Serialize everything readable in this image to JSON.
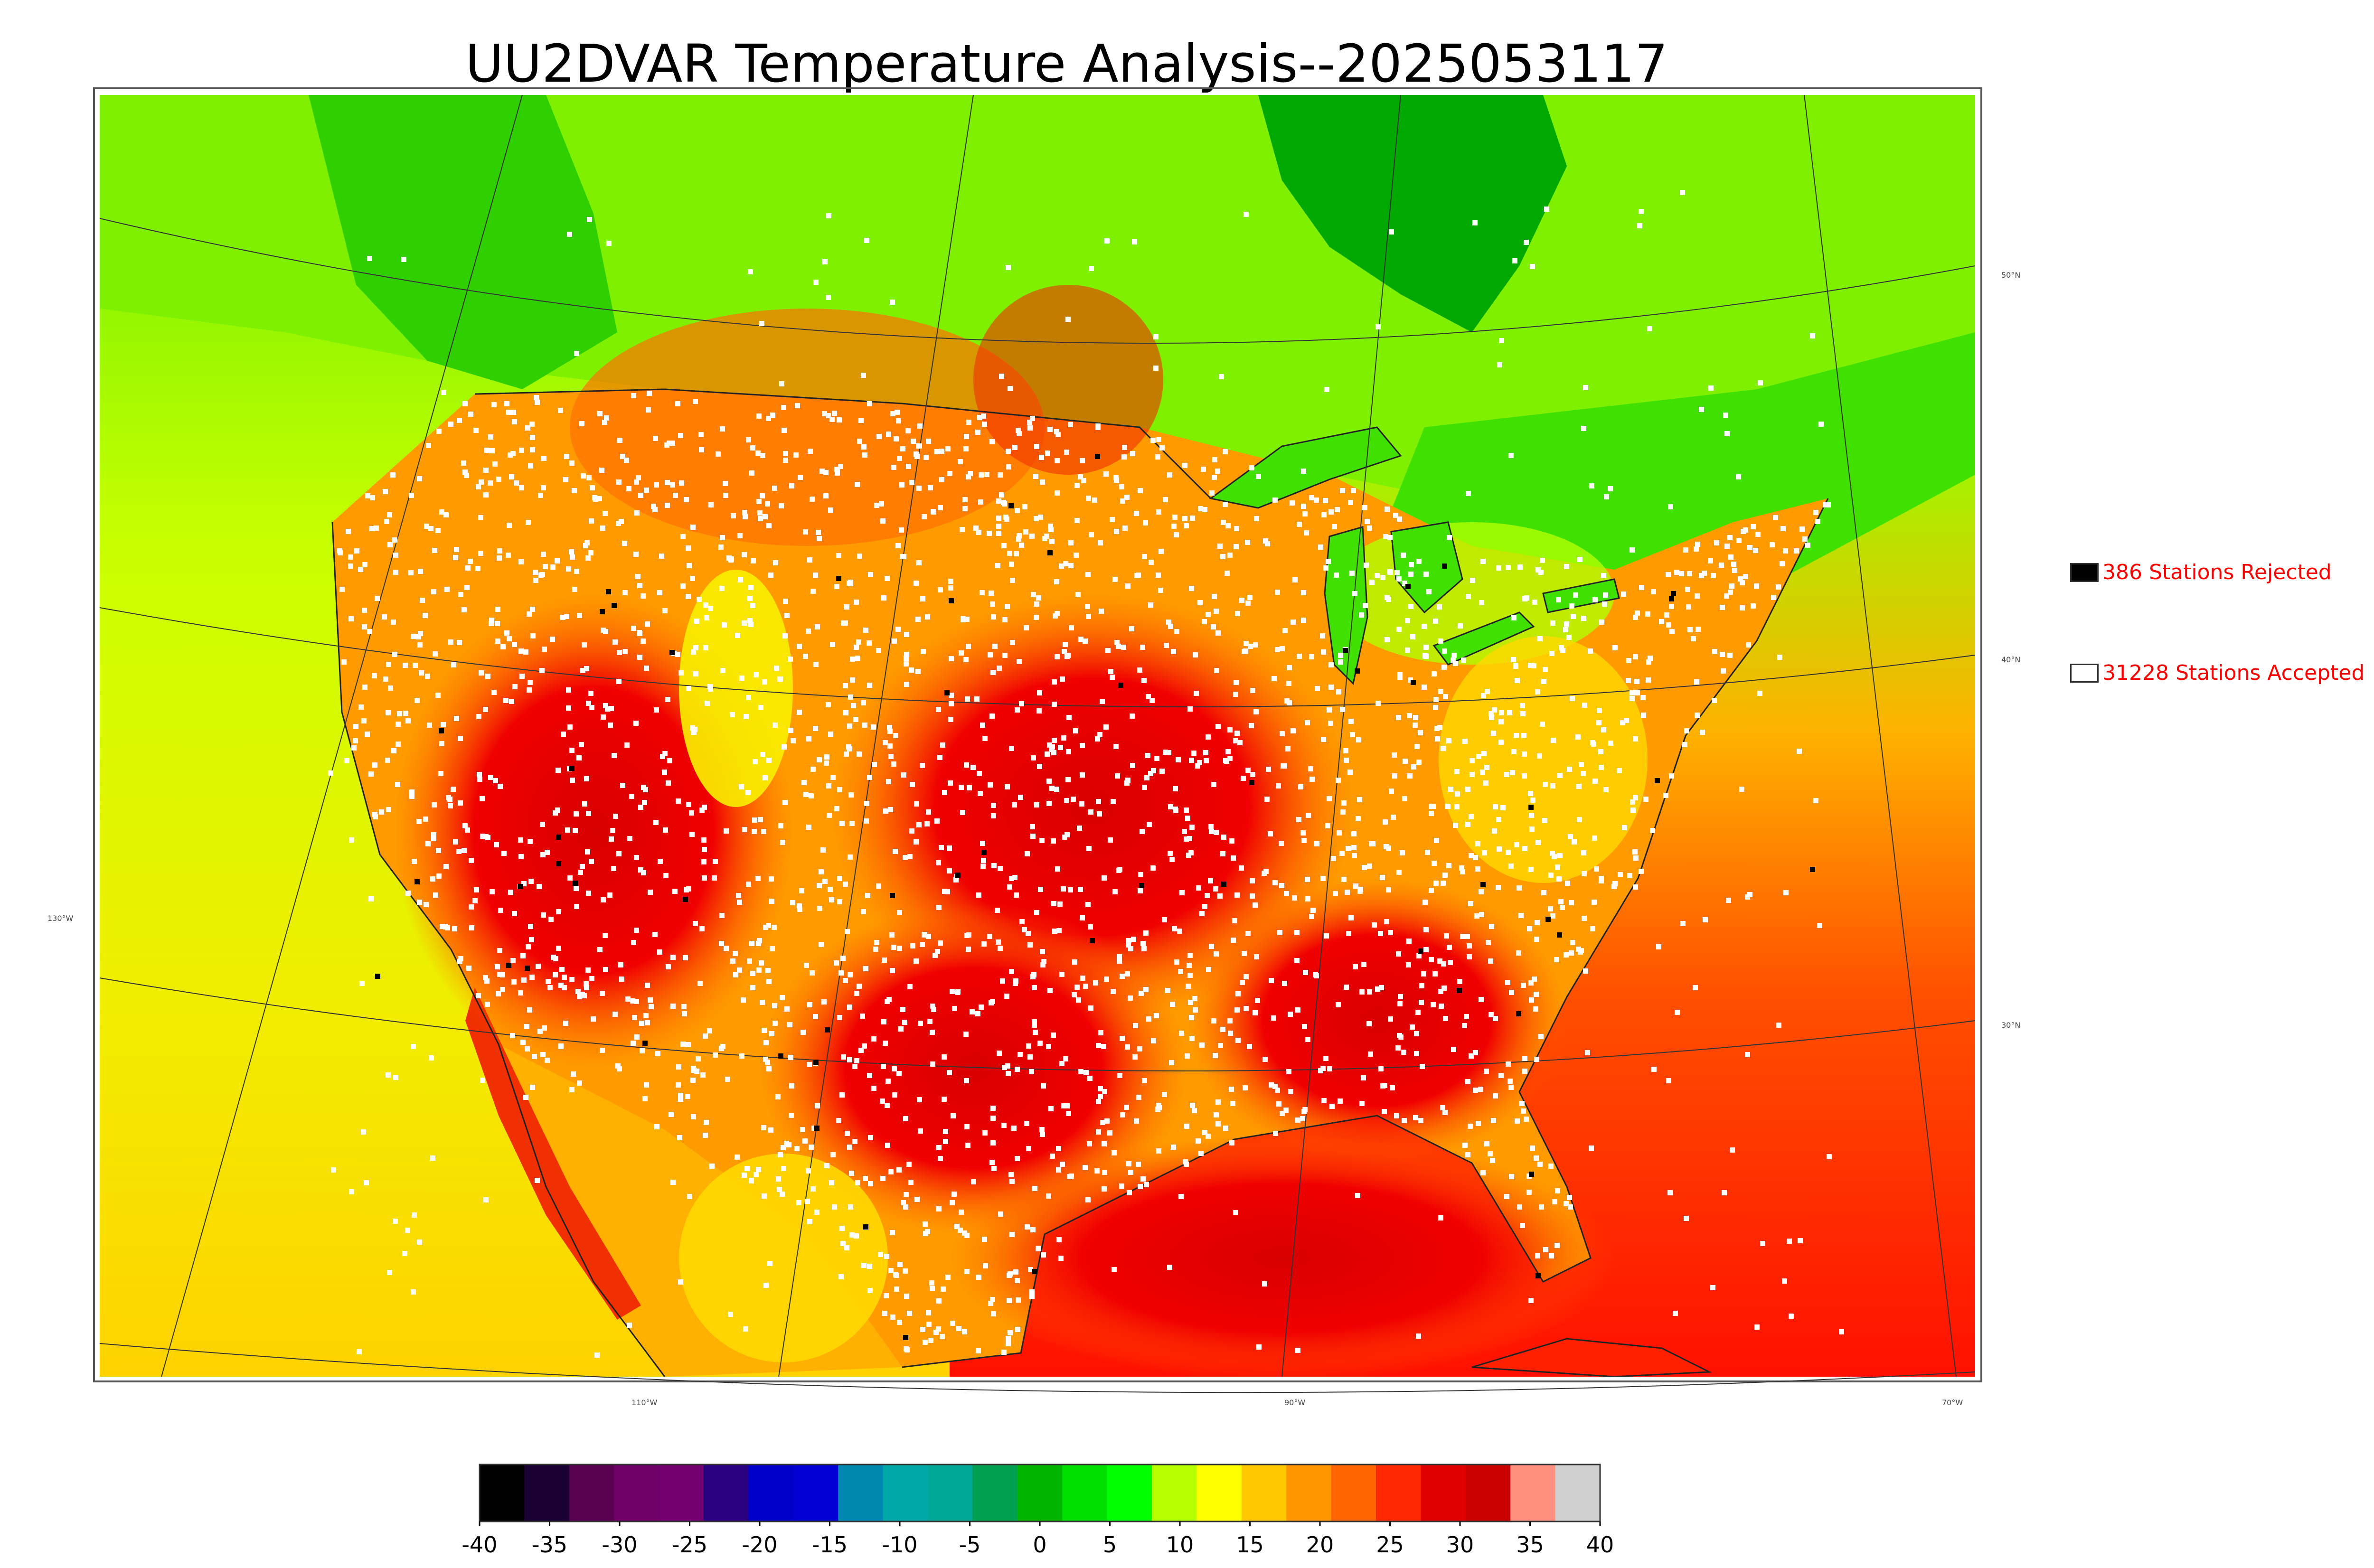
{
  "title": "UU2DVAR Temperature Analysis--2025053117",
  "legend": {
    "rejected": {
      "label": "386 Stations Rejected",
      "color": "#000000"
    },
    "accepted": {
      "label": "31228 Stations Accepted",
      "color": "#ffffff"
    }
  },
  "graticule": {
    "lat_labels": [
      "50°N",
      "40°N",
      "30°N"
    ],
    "lon_labels": [
      "130°W",
      "110°W",
      "90°W",
      "70°W"
    ]
  },
  "colorbar": {
    "ticks": [
      "-40",
      "-35",
      "-30",
      "-25",
      "-20",
      "-15",
      "-10",
      "-5",
      "0",
      "5",
      "10",
      "15",
      "20",
      "25",
      "30",
      "35",
      "40"
    ],
    "colors": [
      "#000000",
      "#1a0033",
      "#5a0050",
      "#6e0068",
      "#740070",
      "#2a0080",
      "#0000c8",
      "#0000d2",
      "#0088b0",
      "#00a8a8",
      "#00a898",
      "#00a050",
      "#00b400",
      "#00e000",
      "#00ff00",
      "#b4ff00",
      "#ffff00",
      "#ffc800",
      "#ff9600",
      "#ff6400",
      "#ff2800",
      "#e00000",
      "#c80000",
      "#ff9080",
      "#d0d0d0"
    ]
  },
  "colors": {
    "hot": "#e00000",
    "warm": "#ff9600",
    "mild": "#ffff00",
    "cool": "#00ff00",
    "title": "#000000",
    "legend_text": "#ff0000"
  }
}
